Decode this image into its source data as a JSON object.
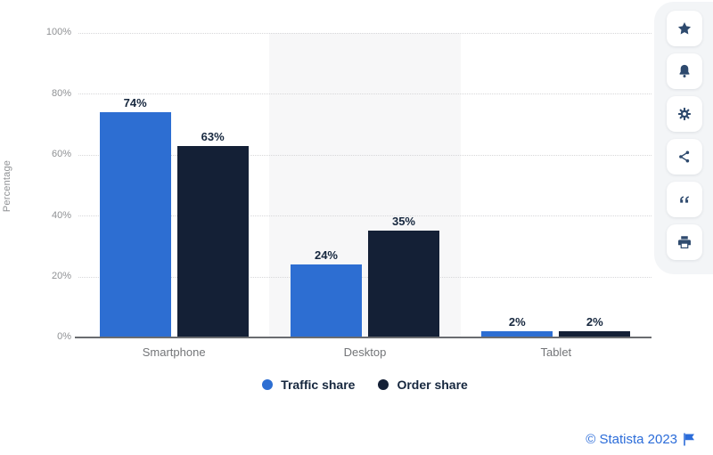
{
  "chart_data": {
    "type": "bar",
    "title": "",
    "categories": [
      "Smartphone",
      "Desktop",
      "Tablet"
    ],
    "series": [
      {
        "name": "Traffic share",
        "color": "#2d6ed2",
        "values": [
          74,
          24,
          2
        ]
      },
      {
        "name": "Order share",
        "color": "#142036",
        "values": [
          63,
          35,
          2
        ]
      }
    ],
    "value_labels": [
      "74%",
      "63%",
      "24%",
      "35%",
      "2%",
      "2%"
    ],
    "ylabel": "Percentage",
    "xlabel": "",
    "yticks": [
      "100%",
      "80%",
      "60%",
      "40%",
      "20%",
      "0%"
    ],
    "ylim": [
      0,
      100
    ],
    "value_suffix": "%",
    "grid": "horizontal-dotted",
    "legend_position": "bottom",
    "highlight_band_category": "Desktop"
  },
  "colors": {
    "traffic_share": "#2d6ed2",
    "order_share": "#142036",
    "attribution_blue": "#2b6cd9",
    "band": "#f7f7f8"
  },
  "sidebar": {
    "icons": [
      "star-icon",
      "bell-icon",
      "gear-icon",
      "share-icon",
      "quote-icon",
      "print-icon"
    ]
  },
  "footer": {
    "attribution": "© Statista 2023"
  }
}
